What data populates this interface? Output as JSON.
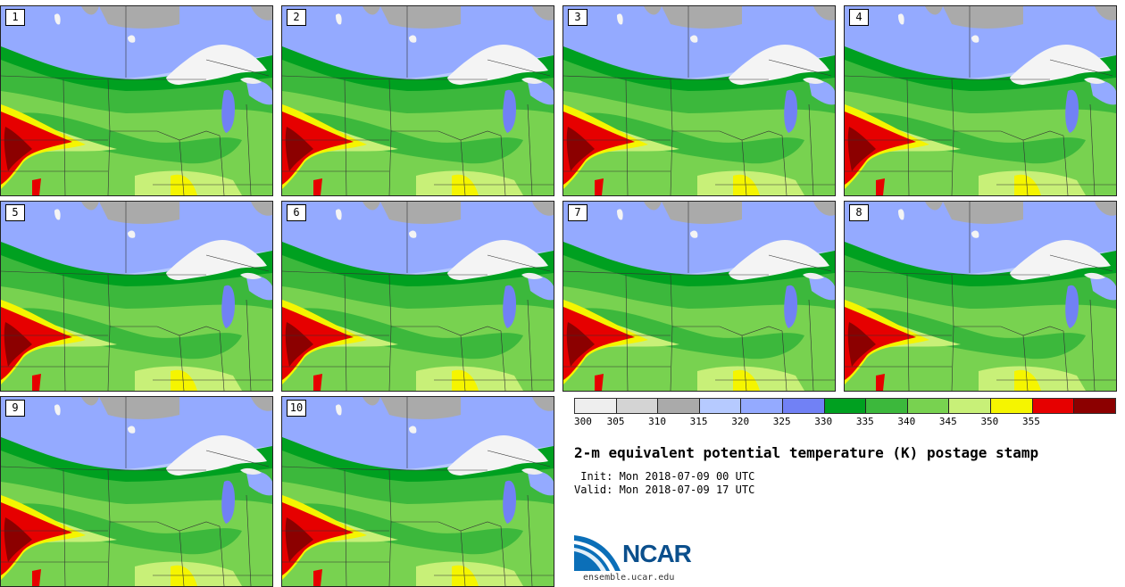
{
  "members": [
    {
      "label": "1"
    },
    {
      "label": "2"
    },
    {
      "label": "3"
    },
    {
      "label": "4"
    },
    {
      "label": "5"
    },
    {
      "label": "6"
    },
    {
      "label": "7"
    },
    {
      "label": "8"
    },
    {
      "label": "9"
    },
    {
      "label": "10"
    }
  ],
  "colorbar": {
    "ticks": [
      "300",
      "305",
      "310",
      "315",
      "320",
      "325",
      "330",
      "335",
      "340",
      "345",
      "350",
      "355"
    ],
    "colors": [
      "#eeeeee",
      "#d4d4d4",
      "#aaaaaa",
      "#b6caff",
      "#94aaff",
      "#7181f5",
      "#00a020",
      "#3cb83c",
      "#78d250",
      "#c8f078",
      "#f5f500",
      "#e60000",
      "#8c0000"
    ]
  },
  "title": "2-m equivalent potential temperature (K) postage stamp",
  "init": " Init: Mon 2018-07-09 00 UTC",
  "valid": "Valid: Mon 2018-07-09 17 UTC",
  "logo_text": "NCAR",
  "site": "ensemble.ucar.edu"
}
